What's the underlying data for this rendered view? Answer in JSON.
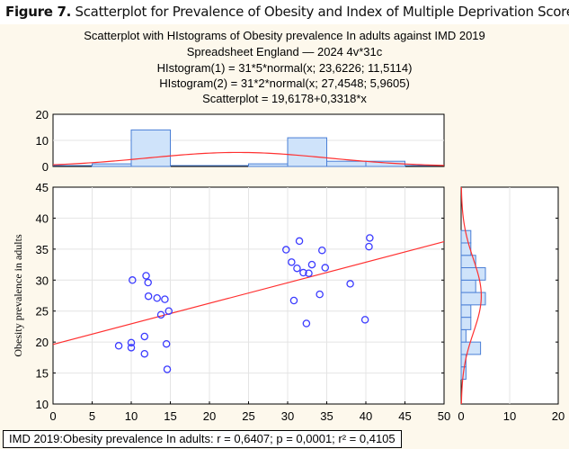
{
  "caption": {
    "label": "Figure 7.",
    "text": " Scatterplot for Prevalence of Obesity and Index of Multiple Deprivation Score."
  },
  "chart_data": {
    "type": "scatter",
    "title_lines": [
      "Scatterplot with HIstograms of Obesity prevalence In adults against IMD 2019",
      "Spreadsheet England — 2024 4v*31c",
      "HIstogram(1) = 31*5*normal(x; 23,6226; 11,5114)",
      "HIstogram(2) = 31*2*normal(x; 27,4548; 5,9605)",
      "Scatterplot = 19,6178+0,3318*x"
    ],
    "ylabel": "Obesity prevalence in adults",
    "xlabel": "",
    "xlim": [
      0,
      50
    ],
    "ylim": [
      10,
      45
    ],
    "xticks": [
      "0",
      "5",
      "10",
      "15",
      "20",
      "25",
      "30",
      "35",
      "40",
      "45",
      "50"
    ],
    "yticks": [
      "10",
      "15",
      "20",
      "25",
      "30",
      "35",
      "40",
      "45"
    ],
    "grid": true,
    "point_color": "#3b3bff",
    "line_color": "#ff3030",
    "bar_color": "#cfe3fa",
    "bar_edge": "#4a7fd6",
    "regression": {
      "intercept": 19.6178,
      "slope": 0.3318
    },
    "points": [
      [
        10.15,
        30.0
      ],
      [
        11.9,
        30.7
      ],
      [
        12.15,
        29.6
      ],
      [
        12.2,
        27.4
      ],
      [
        13.3,
        27.1
      ],
      [
        14.3,
        26.9
      ],
      [
        13.8,
        24.4
      ],
      [
        14.8,
        25.0
      ],
      [
        11.7,
        20.9
      ],
      [
        8.4,
        19.4
      ],
      [
        10.0,
        19.9
      ],
      [
        10.0,
        19.1
      ],
      [
        11.7,
        18.1
      ],
      [
        14.5,
        19.7
      ],
      [
        14.6,
        15.6
      ],
      [
        29.8,
        34.9
      ],
      [
        31.5,
        36.3
      ],
      [
        34.4,
        34.8
      ],
      [
        30.5,
        32.9
      ],
      [
        31.2,
        31.9
      ],
      [
        33.1,
        32.5
      ],
      [
        32.0,
        31.2
      ],
      [
        32.7,
        31.1
      ],
      [
        34.8,
        32.0
      ],
      [
        38.0,
        29.4
      ],
      [
        34.1,
        27.7
      ],
      [
        30.8,
        26.7
      ],
      [
        32.4,
        23.0
      ],
      [
        39.9,
        23.6
      ],
      [
        40.5,
        36.8
      ],
      [
        40.4,
        35.4
      ]
    ],
    "top_histogram": {
      "yticks": [
        "0",
        "10",
        "20"
      ],
      "ylim": [
        0,
        20
      ],
      "bin_width": 5,
      "bins": [
        [
          0,
          0
        ],
        [
          5,
          1
        ],
        [
          10,
          14
        ],
        [
          15,
          0
        ],
        [
          20,
          0
        ],
        [
          25,
          1
        ],
        [
          30,
          11
        ],
        [
          35,
          2
        ],
        [
          40,
          2
        ],
        [
          45,
          0
        ]
      ],
      "normal": {
        "n": 31,
        "width": 5,
        "mean": 23.6226,
        "sd": 11.5114
      }
    },
    "right_histogram": {
      "xticks": [
        "0",
        "10",
        "20"
      ],
      "xlim": [
        0,
        20
      ],
      "bin_width": 2,
      "bins": [
        [
          14,
          1
        ],
        [
          16,
          1
        ],
        [
          18,
          4
        ],
        [
          20,
          1
        ],
        [
          22,
          2
        ],
        [
          24,
          2
        ],
        [
          26,
          5
        ],
        [
          28,
          3
        ],
        [
          30,
          5
        ],
        [
          32,
          3
        ],
        [
          34,
          2
        ],
        [
          36,
          2
        ]
      ],
      "normal": {
        "n": 31,
        "width": 2,
        "mean": 27.4548,
        "sd": 5.9605
      }
    },
    "stats": "IMD 2019:Obesity prevalence In adults:   r = 0,6407; p = 0,0001; r² = 0,4105"
  }
}
